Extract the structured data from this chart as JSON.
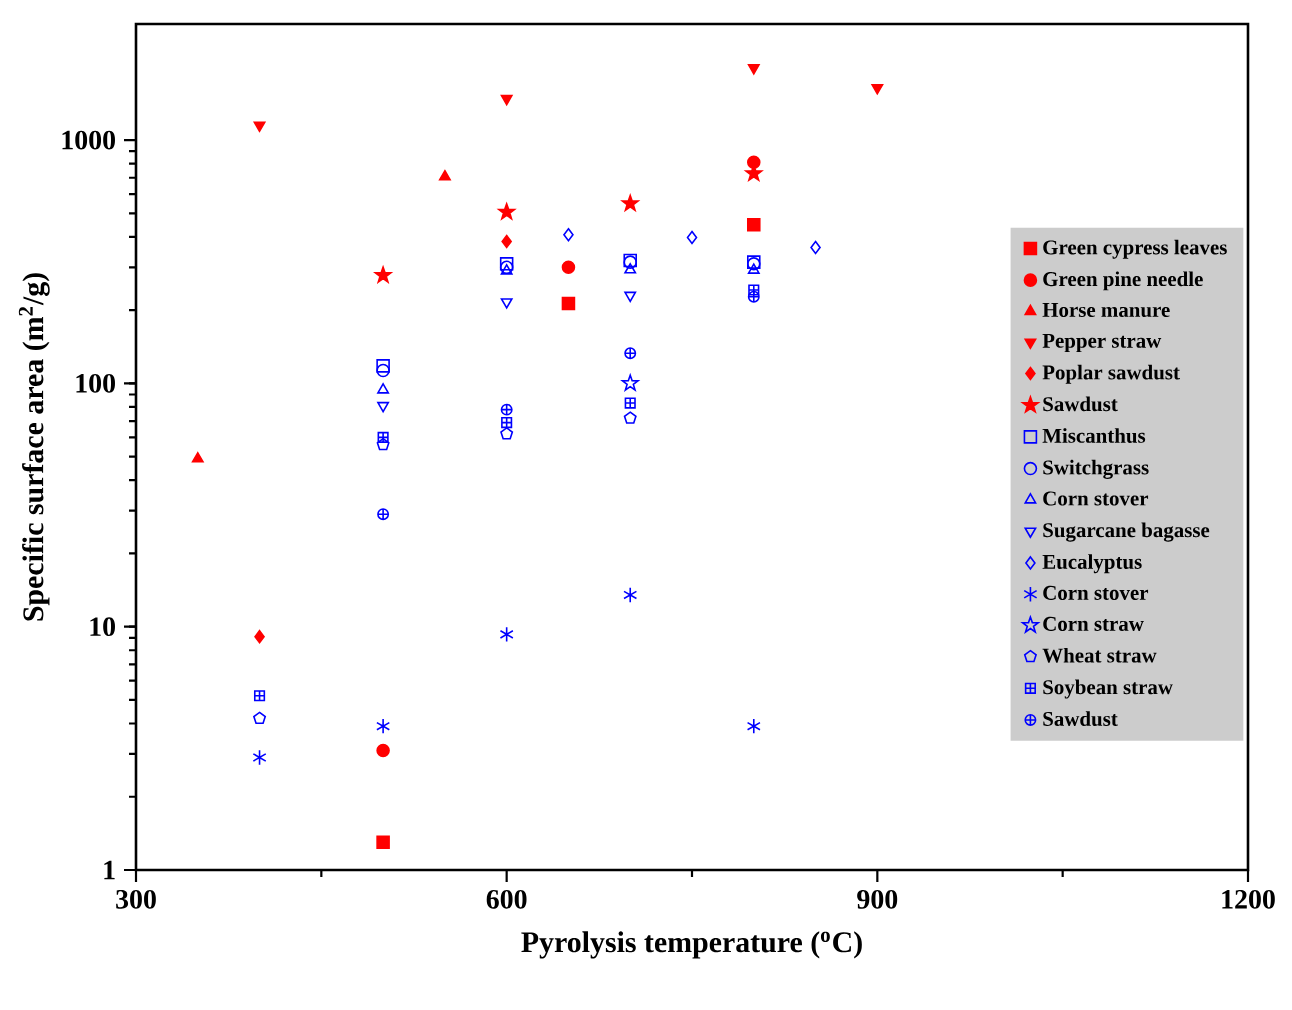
{
  "chart_data": {
    "type": "scatter",
    "xlabel": "Pyrolysis temperature ($^{o}$C)",
    "ylabel": "Specific surface area (m$^{2}$/g)",
    "xlim": [
      300,
      1200
    ],
    "xticks": [
      300,
      600,
      900,
      1200
    ],
    "ylim": [
      1,
      3000
    ],
    "yticks": [
      1,
      10,
      100,
      1000
    ],
    "log": "y",
    "grid": false,
    "legend": "right",
    "series": [
      {
        "name": "Green cypress leaves",
        "color": "#ff0000",
        "marker": "square",
        "x": [
          500,
          650,
          800
        ],
        "values": [
          1.3,
          213,
          449
        ]
      },
      {
        "name": "Green pine needle",
        "color": "#ff0000",
        "marker": "circle",
        "x": [
          500,
          650,
          800
        ],
        "values": [
          3.1,
          300,
          811
        ]
      },
      {
        "name": "Horse manure",
        "color": "#ff0000",
        "marker": "triangle",
        "x": [
          350,
          550
        ],
        "values": [
          49,
          707
        ]
      },
      {
        "name": "Pepper straw",
        "color": "#ff0000",
        "marker": "triangle-down",
        "x": [
          400,
          600,
          800,
          900
        ],
        "values": [
          1150,
          1480,
          1980,
          1640
        ]
      },
      {
        "name": "Poplar sawdust",
        "color": "#ff0000",
        "marker": "diamond",
        "x": [
          400,
          600
        ],
        "values": [
          9.1,
          383
        ]
      },
      {
        "name": "Sawdust",
        "color": "#ff0000",
        "marker": "star",
        "x": [
          500,
          600,
          700,
          800
        ],
        "values": [
          278,
          506,
          548,
          729
        ]
      },
      {
        "name": "Miscanthus",
        "color": "#0000ff",
        "marker": "square",
        "x": [
          500,
          600,
          700,
          800
        ],
        "values": [
          118,
          310,
          320,
          315
        ]
      },
      {
        "name": "Switchgrass",
        "color": "#0000ff",
        "marker": "circle",
        "x": [
          500,
          600,
          700,
          800
        ],
        "values": [
          113,
          300,
          315,
          310
        ]
      },
      {
        "name": "Corn stover",
        "color": "#0000ff",
        "marker": "triangle",
        "x": [
          500,
          600,
          700,
          800
        ],
        "values": [
          94,
          290,
          293,
          292
        ]
      },
      {
        "name": "Sugarcane bagasse",
        "color": "#0000ff",
        "marker": "triangle-down",
        "x": [
          500,
          600,
          700
        ],
        "values": [
          81,
          216,
          230
        ]
      },
      {
        "name": "Eucalyptus",
        "color": "#0000ff",
        "marker": "diamond",
        "x": [
          650,
          750,
          850
        ],
        "values": [
          408,
          398,
          362
        ]
      },
      {
        "name": "Corn stover",
        "color": "#0000ff",
        "marker": "cross",
        "x": [
          400,
          500,
          600,
          700,
          800
        ],
        "values": [
          2.9,
          3.9,
          9.3,
          13.5,
          3.9
        ]
      },
      {
        "name": "Corn straw",
        "color": "#0000ff",
        "marker": "star",
        "x": [
          700
        ],
        "values": [
          100
        ]
      },
      {
        "name": "Wheat straw",
        "color": "#0000ff",
        "x": [
          400,
          500,
          600,
          700
        ],
        "values": [
          4.2,
          56,
          62,
          72
        ]
      },
      {
        "name": "Soybean straw",
        "color": "#0000ff",
        "x": [
          400,
          500,
          600,
          700,
          800
        ],
        "values": [
          5.2,
          60,
          69,
          83,
          242
        ]
      },
      {
        "name": "Sawdust",
        "color": "#0000ff",
        "x": [
          500,
          600,
          700,
          800
        ],
        "values": [
          29,
          78,
          133,
          227
        ]
      }
    ]
  }
}
